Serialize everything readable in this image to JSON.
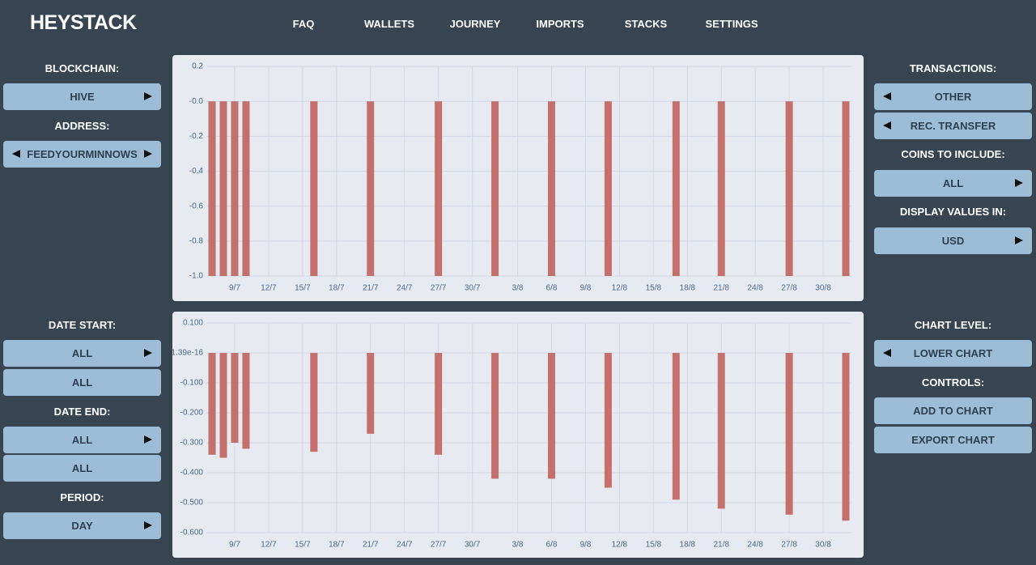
{
  "header": {
    "title": "HEYSTACK",
    "nav": [
      "FAQ",
      "WALLETS",
      "JOURNEY",
      "IMPORTS",
      "STACKS",
      "SETTINGS"
    ]
  },
  "left_panel": {
    "blockchain_label": "BLOCKCHAIN:",
    "blockchain": "HIVE",
    "address_label": "ADDRESS:",
    "address": "FEEDYOURMINNOWS",
    "date_start_label": "DATE START:",
    "date_start": "ALL",
    "date_start_2": "ALL",
    "date_end_label": "DATE END:",
    "date_end": "ALL",
    "date_end_2": "ALL",
    "period_label": "PERIOD:",
    "period": "DAY"
  },
  "right_panel": {
    "transactions_label": "TRANSACTIONS:",
    "transaction_1": "OTHER",
    "transaction_2": "REC. TRANSFER",
    "coins_label": "COINS TO INCLUDE:",
    "coins": "ALL",
    "display_label": "DISPLAY VALUES IN:",
    "display": "USD",
    "chart_level_label": "CHART LEVEL:",
    "chart_level": "LOWER CHART",
    "controls_label": "CONTROLS:",
    "add_to_chart": "ADD TO CHART",
    "export_chart": "EXPORT CHART"
  },
  "chart_data": [
    {
      "type": "bar",
      "color": "#c4706c",
      "grid": true,
      "categories": [
        null,
        null,
        "9/7",
        null,
        null,
        "12/7",
        null,
        null,
        "15/7",
        null,
        null,
        "18/7",
        null,
        null,
        "21/7",
        null,
        null,
        "24/7",
        null,
        null,
        "27/7",
        null,
        null,
        "30/7",
        null,
        null,
        null,
        "3/8",
        null,
        null,
        "6/8",
        null,
        null,
        "9/8",
        null,
        null,
        "12/8",
        null,
        null,
        "15/8",
        null,
        null,
        "18/8",
        null,
        null,
        "21/8",
        null,
        null,
        "24/8",
        null,
        null,
        "27/8",
        null,
        null,
        "30/8",
        null,
        null
      ],
      "values": [
        -1,
        -1,
        -1,
        -1,
        null,
        null,
        null,
        null,
        null,
        -1,
        null,
        null,
        null,
        null,
        -1,
        null,
        null,
        null,
        null,
        null,
        -1,
        null,
        null,
        null,
        null,
        -1,
        null,
        null,
        null,
        null,
        -1,
        null,
        null,
        null,
        null,
        -1,
        null,
        null,
        null,
        null,
        null,
        -1,
        null,
        null,
        null,
        -1,
        null,
        null,
        null,
        null,
        null,
        -1,
        null,
        null,
        null,
        null,
        -1
      ],
      "ylim": [
        -1.0,
        0.2
      ],
      "yticks": [
        0.2,
        {
          "value": 0,
          "label": "-0.0"
        },
        -0.2,
        -0.4,
        -0.6,
        -0.8,
        {
          "value": -1.0,
          "label": "-1.0"
        }
      ]
    },
    {
      "type": "bar",
      "color": "#c4706c",
      "grid": true,
      "categories": [
        null,
        null,
        "9/7",
        null,
        null,
        "12/7",
        null,
        null,
        "15/7",
        null,
        null,
        "18/7",
        null,
        null,
        "21/7",
        null,
        null,
        "24/7",
        null,
        null,
        "27/7",
        null,
        null,
        "30/7",
        null,
        null,
        null,
        "3/8",
        null,
        null,
        "6/8",
        null,
        null,
        "9/8",
        null,
        null,
        "12/8",
        null,
        null,
        "15/8",
        null,
        null,
        "18/8",
        null,
        null,
        "21/8",
        null,
        null,
        "24/8",
        null,
        null,
        "27/8",
        null,
        null,
        "30/8",
        null,
        null
      ],
      "values": [
        -0.34,
        -0.35,
        -0.3,
        -0.32,
        null,
        null,
        null,
        null,
        null,
        -0.33,
        null,
        null,
        null,
        null,
        -0.27,
        null,
        null,
        null,
        null,
        null,
        -0.34,
        null,
        null,
        null,
        null,
        -0.42,
        null,
        null,
        null,
        null,
        -0.42,
        null,
        null,
        null,
        null,
        -0.45,
        null,
        null,
        null,
        null,
        null,
        -0.49,
        null,
        null,
        null,
        -0.52,
        null,
        null,
        null,
        null,
        null,
        -0.54,
        null,
        null,
        null,
        null,
        -0.56
      ],
      "ylim": [
        -0.6,
        0.1
      ],
      "yticks": [
        {
          "value": 0.1,
          "label": "0.100"
        },
        {
          "value": 1.39e-16,
          "label": "1.39e-16"
        },
        {
          "value": -0.1,
          "label": "-0.100"
        },
        {
          "value": -0.2,
          "label": "-0.200"
        },
        {
          "value": -0.3,
          "label": "-0.300"
        },
        {
          "value": -0.4,
          "label": "-0.400"
        },
        {
          "value": -0.5,
          "label": "-0.500"
        },
        {
          "value": -0.6,
          "label": "-0.600"
        }
      ]
    }
  ]
}
